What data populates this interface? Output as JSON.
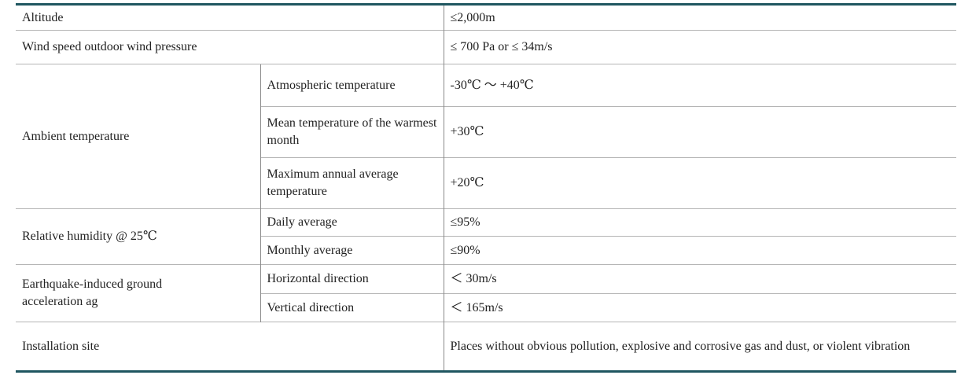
{
  "table": {
    "rows": [
      [
        "Altitude",
        "≤2,000m"
      ],
      [
        "Wind speed outdoor wind pressure",
        "≤ 700 Pa or ≤ 34m/s"
      ],
      [
        "Ambient temperature",
        "Atmospheric temperature",
        "-30℃ ～ +40℃"
      ],
      [
        "Mean temperature of the warmest month",
        "+30℃"
      ],
      [
        "Maximum annual average temperature",
        "+20℃"
      ],
      [
        "Relative humidity @ 25℃",
        "Daily average",
        "≤95%"
      ],
      [
        "Monthly average",
        "≤90%"
      ],
      [
        "Earthquake-induced ground acceleration ag",
        "Horizontal direction",
        "＜ 30m/s"
      ],
      [
        "Vertical direction",
        "＜ 165m/s"
      ],
      [
        "Installation site",
        "Places without obvious pollution, explosive and corrosive gas and dust, or violent vibration"
      ]
    ]
  }
}
